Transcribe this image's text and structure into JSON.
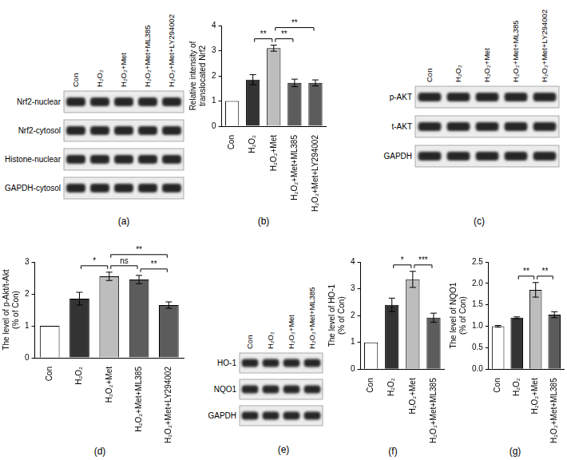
{
  "chart_data": [
    {
      "type": "bar",
      "annotation": "(b)",
      "y_label": [
        "Relative intensity of",
        "translocated Nrf2"
      ],
      "categories": [
        "Con",
        "H₂O₂",
        "H₂O₂+Met",
        "H₂O₂+Met+ML385",
        "H₂O₂+Met+LY294002"
      ],
      "values": [
        1,
        1.85,
        3.1,
        1.72,
        1.72
      ],
      "errors": [
        0,
        0.2,
        0.12,
        0.15,
        0.12
      ],
      "colors": [
        "#ffffff",
        "#333333",
        "#bdbdbd",
        "#5c5c5c",
        "#5c5c5c"
      ],
      "ylim": [
        0,
        4
      ],
      "yticks": [
        0,
        1,
        2,
        3,
        4
      ],
      "grid": false,
      "significance": [
        {
          "from": 1,
          "to": 2,
          "label": "**"
        },
        {
          "from": 2,
          "to": 3,
          "label": "**"
        },
        {
          "from": 2,
          "to": 4,
          "label": "**"
        }
      ]
    },
    {
      "type": "bar",
      "annotation": "(d)",
      "y_label": [
        "The level of p-Akt/t-Akt",
        "(% of Con)"
      ],
      "categories": [
        "Con",
        "H₂O₂",
        "H₂O₂+Met",
        "H₂O₂+Met+ML385",
        "H₂O₂+Met+LY294002"
      ],
      "values": [
        1,
        1.85,
        2.55,
        2.45,
        1.65
      ],
      "errors": [
        0,
        0.2,
        0.13,
        0.13,
        0.1
      ],
      "colors": [
        "#ffffff",
        "#333333",
        "#bdbdbd",
        "#5c5c5c",
        "#5c5c5c"
      ],
      "ylim": [
        0,
        3
      ],
      "yticks": [
        0,
        1,
        2,
        3
      ],
      "grid": false,
      "significance": [
        {
          "from": 1,
          "to": 2,
          "label": "*"
        },
        {
          "from": 2,
          "to": 3,
          "label": "ns"
        },
        {
          "from": 3,
          "to": 4,
          "label": "**"
        },
        {
          "from": 2,
          "to": 4,
          "label": "**"
        }
      ]
    },
    {
      "type": "bar",
      "annotation": "(f)",
      "y_label": [
        "The level of HO-1",
        "(% of Con)"
      ],
      "categories": [
        "Con",
        "H₂O₂",
        "H₂O₂+Met",
        "H₂O₂+Met+ML385"
      ],
      "values": [
        1,
        2.4,
        3.35,
        1.92
      ],
      "errors": [
        0,
        0.25,
        0.3,
        0.17
      ],
      "colors": [
        "#ffffff",
        "#333333",
        "#bdbdbd",
        "#5c5c5c"
      ],
      "ylim": [
        0,
        4
      ],
      "yticks": [
        0,
        1,
        2,
        3,
        4
      ],
      "grid": false,
      "significance": [
        {
          "from": 1,
          "to": 2,
          "label": "*"
        },
        {
          "from": 2,
          "to": 3,
          "label": "***"
        }
      ]
    },
    {
      "type": "bar",
      "annotation": "(g)",
      "y_label": [
        "The level of NQO1",
        "(% of Con)"
      ],
      "categories": [
        "Con",
        "H₂O₂",
        "H₂O₂+Met",
        "H₂O₂+Met+ML385"
      ],
      "values": [
        1,
        1.2,
        1.85,
        1.27
      ],
      "errors": [
        0.02,
        0.02,
        0.17,
        0.07
      ],
      "colors": [
        "#ffffff",
        "#333333",
        "#bdbdbd",
        "#5c5c5c"
      ],
      "ylim": [
        0,
        2.5
      ],
      "yticks": [
        {
          "value": 0,
          "label": "0.0"
        },
        {
          "value": 0.5,
          "label": "0.5"
        },
        {
          "value": 1,
          "label": "1.0"
        },
        {
          "value": 1.5,
          "label": "1.5"
        },
        {
          "value": 2,
          "label": "2.0"
        },
        {
          "value": 2.5,
          "label": "2.5"
        }
      ],
      "grid": false,
      "significance": [
        {
          "from": 1,
          "to": 2,
          "label": "**"
        },
        {
          "from": 2,
          "to": 3,
          "label": "**"
        }
      ]
    }
  ],
  "blots": [
    {
      "annotation": "(a)",
      "lanes": [
        "Con",
        "H₂O₂",
        "H₂O₂+Met",
        "H₂O₂+Met+ML385",
        "H₂O₂+Met+LY294002"
      ],
      "rows": [
        "Nrf2-nuclear",
        "Nrf2-cytosol",
        "Histone-nuclear",
        "GAPDH-cytosol"
      ]
    },
    {
      "annotation": "(c)",
      "lanes": [
        "Con",
        "H₂O₂",
        "H₂O₂+Met",
        "H₂O₂+Met+ML385",
        "H₂O₂+Met+LY294002"
      ],
      "rows": [
        "p-AKT",
        "t-AKT",
        "GAPDH"
      ]
    },
    {
      "annotation": "(e)",
      "lanes": [
        "Con",
        "H₂O₂",
        "H₂O₂+Met",
        "H₂O₂+Met+ML385"
      ],
      "rows": [
        "HO-1",
        "NQO1",
        "GAPDH"
      ]
    }
  ]
}
